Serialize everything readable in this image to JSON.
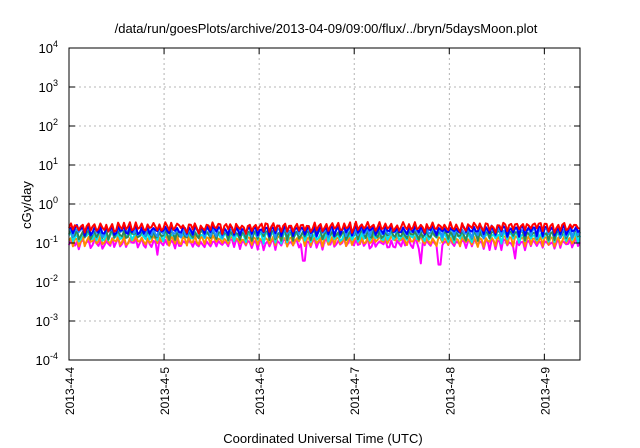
{
  "chart_data": {
    "type": "line",
    "title": "/data/run/goesPlots/archive/2013-04-09/09:00/flux/../bryn/5daysMoon.plot",
    "xlabel": "Coordinated Universal Time (UTC)",
    "ylabel": "cGy/day",
    "yscale": "log",
    "ylim": [
      0.0001,
      10000
    ],
    "xlim": [
      "2013-04-04 00:00",
      "2013-04-09 09:00"
    ],
    "grid": true,
    "x_ticks": [
      "2013-4-4",
      "2013-4-5",
      "2013-4-6",
      "2013-4-7",
      "2013-4-8",
      "2013-4-9"
    ],
    "y_ticks": [
      {
        "base": "10",
        "exp": "-4"
      },
      {
        "base": "10",
        "exp": "-3"
      },
      {
        "base": "10",
        "exp": "-2"
      },
      {
        "base": "10",
        "exp": "-1"
      },
      {
        "base": "10",
        "exp": "0"
      },
      {
        "base": "10",
        "exp": "1"
      },
      {
        "base": "10",
        "exp": "2"
      },
      {
        "base": "10",
        "exp": "3"
      },
      {
        "base": "10",
        "exp": "4"
      }
    ],
    "series": [
      {
        "color": "#ff00ff",
        "typical": 0.1,
        "spikes": [
          {
            "x": "2013-04-06 11:20",
            "y": 0.035
          },
          {
            "x": "2013-04-07 17:00",
            "y": 0.03
          },
          {
            "x": "2013-04-07 21:30",
            "y": 0.028
          },
          {
            "x": "2013-04-04 22:30",
            "y": 0.05
          },
          {
            "x": "2013-04-08 16:30",
            "y": 0.04
          }
        ]
      },
      {
        "color": "#ff8c00",
        "typical": 0.12,
        "spikes": []
      },
      {
        "color": "#00e5ee",
        "typical": 0.15,
        "spikes": []
      },
      {
        "color": "#2e8b57",
        "typical": 0.17,
        "spikes": []
      },
      {
        "color": "#1e90ff",
        "typical": 0.2,
        "spikes": []
      },
      {
        "color": "#0000ff",
        "typical": 0.22,
        "spikes": []
      },
      {
        "color": "#ff0000",
        "typical": 0.26,
        "spikes": []
      }
    ]
  }
}
